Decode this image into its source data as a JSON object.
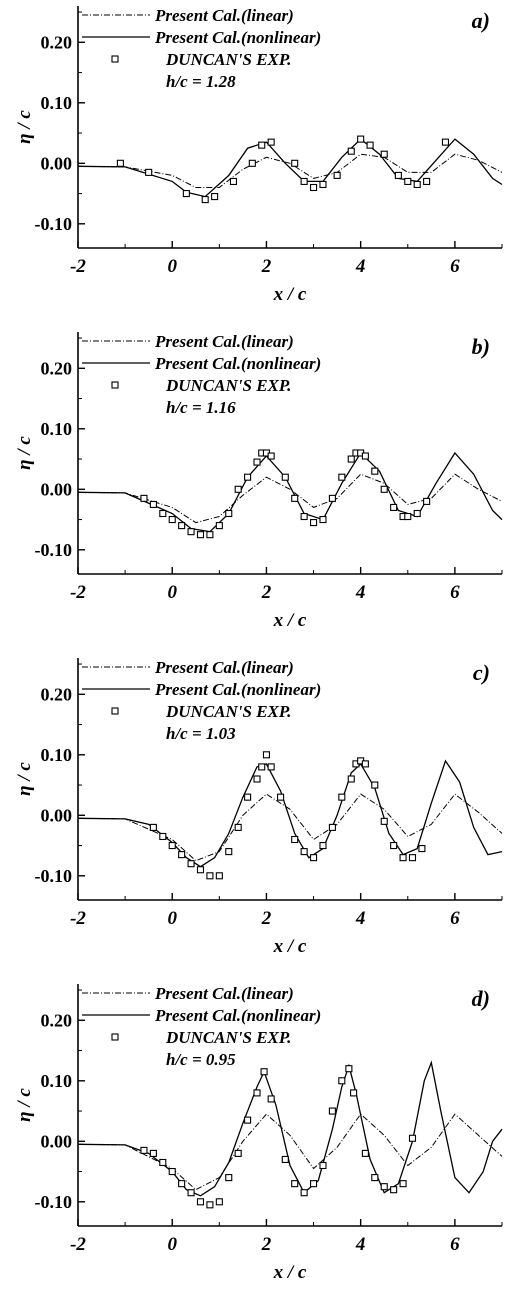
{
  "figure": {
    "legend": {
      "linear": "Present Cal.(linear)",
      "nonlinear": "Present Cal.(nonlinear)",
      "exp": "DUNCAN'S EXP."
    },
    "ylabel": "η / c",
    "xlabel": "x / c"
  },
  "colors": {
    "line": "#000000",
    "background": "#ffffff"
  },
  "chart_data": [
    {
      "type": "line",
      "panel_label": "a)",
      "annotation": "h/c = 1.28",
      "xlabel": "x / c",
      "ylabel": "η / c",
      "xlim": [
        -2,
        7
      ],
      "ylim": [
        -0.14,
        0.26
      ],
      "x_ticks": [
        "-2",
        "0",
        "2",
        "4",
        "6"
      ],
      "y_ticks": [
        "0.20",
        "0.10",
        "0.00",
        "-0.10"
      ],
      "series": [
        {
          "name": "Present Cal.(linear)",
          "style": "dashdot",
          "x": [
            -2,
            -1,
            0,
            0.5,
            1,
            1.5,
            2,
            2.5,
            3,
            3.5,
            4,
            4.5,
            5,
            5.5,
            6,
            6.5,
            7
          ],
          "y": [
            -0.005,
            -0.006,
            -0.02,
            -0.04,
            -0.04,
            -0.01,
            0.01,
            0.0,
            -0.025,
            -0.015,
            0.015,
            0.01,
            -0.015,
            -0.015,
            0.015,
            0.005,
            -0.015
          ]
        },
        {
          "name": "Present Cal.(nonlinear)",
          "style": "solid",
          "x": [
            -2,
            -1,
            0,
            0.3,
            0.7,
            1.2,
            1.6,
            2.0,
            2.4,
            2.8,
            3.2,
            3.6,
            4.0,
            4.4,
            4.8,
            5.2,
            5.6,
            6.0,
            6.4,
            6.8,
            7
          ],
          "y": [
            -0.005,
            -0.006,
            -0.03,
            -0.048,
            -0.055,
            -0.02,
            0.025,
            0.035,
            0.0,
            -0.03,
            -0.03,
            0.01,
            0.04,
            0.015,
            -0.025,
            -0.03,
            0.005,
            0.04,
            0.015,
            -0.025,
            -0.035
          ]
        },
        {
          "name": "DUNCAN'S EXP.",
          "style": "square",
          "x": [
            -1.1,
            -0.5,
            0.3,
            0.7,
            0.9,
            1.3,
            1.7,
            1.9,
            2.1,
            2.6,
            2.8,
            3.0,
            3.2,
            3.5,
            3.8,
            4.0,
            4.2,
            4.5,
            4.8,
            5.0,
            5.2,
            5.4,
            5.8
          ],
          "y": [
            0.0,
            -0.015,
            -0.05,
            -0.06,
            -0.055,
            -0.03,
            0.0,
            0.03,
            0.035,
            0.0,
            -0.03,
            -0.04,
            -0.035,
            -0.02,
            0.02,
            0.04,
            0.03,
            0.015,
            -0.02,
            -0.03,
            -0.035,
            -0.03,
            0.035
          ]
        }
      ]
    },
    {
      "type": "line",
      "panel_label": "b)",
      "annotation": "h/c = 1.16",
      "xlabel": "x / c",
      "ylabel": "η / c",
      "xlim": [
        -2,
        7
      ],
      "ylim": [
        -0.14,
        0.26
      ],
      "x_ticks": [
        "-2",
        "0",
        "2",
        "4",
        "6"
      ],
      "y_ticks": [
        "0.20",
        "0.10",
        "0.00",
        "-0.10"
      ],
      "series": [
        {
          "name": "Present Cal.(linear)",
          "style": "dashdot",
          "x": [
            -2,
            -1,
            0,
            0.5,
            1,
            1.5,
            2,
            2.5,
            3,
            3.5,
            4,
            4.5,
            5,
            5.5,
            6,
            6.5,
            7
          ],
          "y": [
            -0.005,
            -0.006,
            -0.03,
            -0.055,
            -0.045,
            -0.01,
            0.02,
            0.0,
            -0.03,
            -0.015,
            0.025,
            0.01,
            -0.025,
            -0.015,
            0.025,
            0.0,
            -0.02
          ]
        },
        {
          "name": "Present Cal.(nonlinear)",
          "style": "solid",
          "x": [
            -2,
            -1,
            0,
            0.4,
            0.8,
            1.2,
            1.6,
            2.0,
            2.4,
            2.8,
            3.2,
            3.6,
            4.0,
            4.4,
            4.8,
            5.2,
            5.6,
            6.0,
            6.4,
            6.8,
            7
          ],
          "y": [
            -0.005,
            -0.006,
            -0.04,
            -0.065,
            -0.07,
            -0.04,
            0.02,
            0.055,
            0.02,
            -0.04,
            -0.05,
            0.01,
            0.06,
            0.03,
            -0.035,
            -0.045,
            0.01,
            0.06,
            0.025,
            -0.035,
            -0.05
          ]
        },
        {
          "name": "DUNCAN'S EXP.",
          "style": "square",
          "x": [
            -0.6,
            -0.4,
            -0.2,
            0.0,
            0.2,
            0.4,
            0.6,
            0.8,
            1.0,
            1.2,
            1.4,
            1.6,
            1.8,
            1.9,
            2.0,
            2.1,
            2.4,
            2.6,
            2.8,
            3.0,
            3.2,
            3.4,
            3.6,
            3.8,
            3.9,
            4.0,
            4.1,
            4.3,
            4.5,
            4.7,
            4.9,
            5.0,
            5.2,
            5.4
          ],
          "y": [
            -0.015,
            -0.025,
            -0.04,
            -0.05,
            -0.06,
            -0.07,
            -0.075,
            -0.075,
            -0.06,
            -0.04,
            0.0,
            0.02,
            0.045,
            0.06,
            0.06,
            0.055,
            0.02,
            -0.015,
            -0.045,
            -0.055,
            -0.05,
            -0.015,
            0.02,
            0.05,
            0.06,
            0.06,
            0.055,
            0.03,
            0.0,
            -0.03,
            -0.045,
            -0.045,
            -0.04,
            -0.02
          ]
        }
      ]
    },
    {
      "type": "line",
      "panel_label": "c)",
      "annotation": "h/c = 1.03",
      "xlabel": "x / c",
      "ylabel": "η / c",
      "xlim": [
        -2,
        7
      ],
      "ylim": [
        -0.14,
        0.26
      ],
      "x_ticks": [
        "-2",
        "0",
        "2",
        "4",
        "6"
      ],
      "y_ticks": [
        "0.20",
        "0.10",
        "0.00",
        "-0.10"
      ],
      "series": [
        {
          "name": "Present Cal.(linear)",
          "style": "dashdot",
          "x": [
            -2,
            -1,
            0,
            0.5,
            1,
            1.5,
            2,
            2.5,
            3,
            3.5,
            4,
            4.5,
            5,
            5.5,
            6,
            6.5,
            7
          ],
          "y": [
            -0.005,
            -0.006,
            -0.04,
            -0.075,
            -0.06,
            0.0,
            0.035,
            0.01,
            -0.04,
            -0.015,
            0.035,
            0.01,
            -0.035,
            -0.015,
            0.035,
            0.005,
            -0.03
          ]
        },
        {
          "name": "Present Cal.(nonlinear)",
          "style": "solid",
          "x": [
            -2,
            -1,
            -0.5,
            0,
            0.3,
            0.6,
            0.9,
            1.2,
            1.5,
            1.8,
            2.0,
            2.3,
            2.6,
            2.9,
            3.2,
            3.5,
            3.8,
            4.0,
            4.3,
            4.6,
            4.9,
            5.2,
            5.5,
            5.8,
            6.1,
            6.4,
            6.7,
            7
          ],
          "y": [
            -0.005,
            -0.006,
            -0.015,
            -0.045,
            -0.07,
            -0.085,
            -0.07,
            -0.03,
            0.03,
            0.08,
            0.085,
            0.04,
            -0.03,
            -0.07,
            -0.055,
            0.0,
            0.07,
            0.085,
            0.045,
            -0.03,
            -0.065,
            -0.055,
            0.02,
            0.09,
            0.055,
            -0.02,
            -0.065,
            -0.06
          ]
        },
        {
          "name": "DUNCAN'S EXP.",
          "style": "square",
          "x": [
            -0.4,
            -0.2,
            0.0,
            0.2,
            0.4,
            0.6,
            0.8,
            1.0,
            1.2,
            1.4,
            1.6,
            1.8,
            1.9,
            2.0,
            2.1,
            2.3,
            2.6,
            2.8,
            3.0,
            3.2,
            3.4,
            3.6,
            3.8,
            3.9,
            4.0,
            4.1,
            4.3,
            4.5,
            4.7,
            4.9,
            5.1,
            5.3
          ],
          "y": [
            -0.02,
            -0.035,
            -0.05,
            -0.065,
            -0.08,
            -0.09,
            -0.1,
            -0.1,
            -0.06,
            -0.02,
            0.03,
            0.06,
            0.08,
            0.1,
            0.08,
            0.03,
            -0.04,
            -0.06,
            -0.07,
            -0.05,
            -0.02,
            0.03,
            0.06,
            0.085,
            0.09,
            0.085,
            0.05,
            -0.01,
            -0.05,
            -0.07,
            -0.07,
            -0.055
          ]
        }
      ]
    },
    {
      "type": "line",
      "panel_label": "d)",
      "annotation": "h/c = 0.95",
      "xlabel": "x / c",
      "ylabel": "η / c",
      "xlim": [
        -2,
        7
      ],
      "ylim": [
        -0.14,
        0.26
      ],
      "x_ticks": [
        "-2",
        "0",
        "2",
        "4",
        "6"
      ],
      "y_ticks": [
        "0.20",
        "0.10",
        "0.00",
        "-0.10"
      ],
      "series": [
        {
          "name": "Present Cal.(linear)",
          "style": "dashdot",
          "x": [
            -2,
            -1,
            0,
            0.5,
            1,
            1.5,
            2,
            2.5,
            3,
            3.5,
            4,
            4.5,
            5,
            5.5,
            6,
            6.5,
            7
          ],
          "y": [
            -0.005,
            -0.006,
            -0.045,
            -0.08,
            -0.06,
            0.0,
            0.045,
            0.01,
            -0.045,
            -0.01,
            0.045,
            0.01,
            -0.04,
            -0.01,
            0.045,
            0.01,
            -0.025
          ]
        },
        {
          "name": "Present Cal.(nonlinear)",
          "style": "solid",
          "x": [
            -2,
            -1,
            -0.5,
            0,
            0.3,
            0.6,
            0.9,
            1.2,
            1.5,
            1.8,
            1.95,
            2.2,
            2.5,
            2.8,
            3.1,
            3.4,
            3.6,
            3.75,
            3.9,
            4.2,
            4.5,
            4.8,
            5.1,
            5.35,
            5.5,
            5.7,
            6.0,
            6.3,
            6.6,
            6.8,
            7
          ],
          "y": [
            -0.005,
            -0.006,
            -0.02,
            -0.05,
            -0.08,
            -0.09,
            -0.075,
            -0.035,
            0.03,
            0.09,
            0.115,
            0.06,
            -0.04,
            -0.085,
            -0.065,
            0.02,
            0.09,
            0.125,
            0.08,
            -0.03,
            -0.085,
            -0.07,
            0.0,
            0.1,
            0.13,
            0.05,
            -0.06,
            -0.085,
            -0.05,
            0.0,
            0.02
          ]
        },
        {
          "name": "DUNCAN'S EXP.",
          "style": "square",
          "x": [
            -0.6,
            -0.4,
            -0.2,
            0.0,
            0.2,
            0.4,
            0.6,
            0.8,
            1.0,
            1.2,
            1.4,
            1.6,
            1.8,
            1.95,
            2.1,
            2.4,
            2.6,
            2.8,
            3.0,
            3.2,
            3.4,
            3.6,
            3.75,
            3.85,
            4.1,
            4.3,
            4.5,
            4.7,
            4.9,
            5.1
          ],
          "y": [
            -0.015,
            -0.02,
            -0.035,
            -0.05,
            -0.07,
            -0.085,
            -0.1,
            -0.105,
            -0.1,
            -0.06,
            -0.02,
            0.035,
            0.08,
            0.115,
            0.07,
            -0.03,
            -0.07,
            -0.085,
            -0.07,
            -0.04,
            0.05,
            0.1,
            0.12,
            0.08,
            -0.02,
            -0.06,
            -0.075,
            -0.08,
            -0.07,
            0.005
          ]
        }
      ]
    }
  ]
}
